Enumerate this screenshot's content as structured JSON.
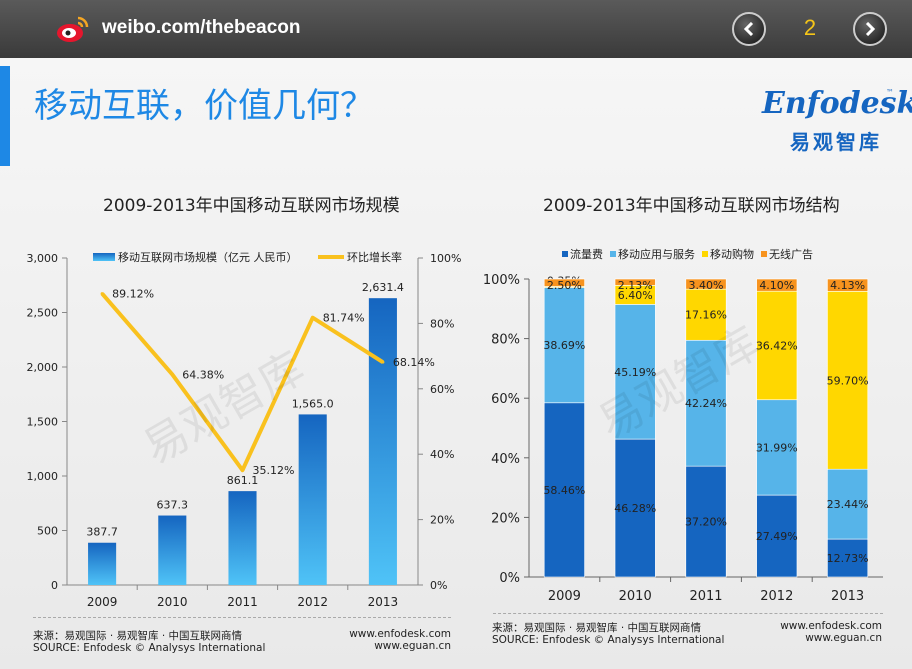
{
  "header": {
    "url": "weibo.com/thebeacon",
    "page_number": "2",
    "title": "移动互联，价值几何？",
    "logo_en": "Enfodesk",
    "logo_cn": "易观智库",
    "logo_tm": "™"
  },
  "watermark": "易观智库",
  "chart_data": [
    {
      "type": "bar",
      "title": "2009-2013年中国移动互联网市场规模",
      "categories": [
        "2009",
        "2010",
        "2011",
        "2012",
        "2013"
      ],
      "series": [
        {
          "name": "移动互联网市场规模（亿元 人民币）",
          "type": "bar",
          "axis": "left",
          "values": [
            387.7,
            637.3,
            861.1,
            1565.0,
            2631.4
          ],
          "labels": [
            "387.7",
            "637.3",
            "861.1",
            "1,565.0",
            "2,631.4"
          ],
          "color": "#1e88e5"
        },
        {
          "name": "环比增长率",
          "type": "line",
          "axis": "right",
          "values": [
            89.12,
            64.38,
            35.12,
            81.74,
            68.14
          ],
          "labels": [
            "89.12%",
            "64.38%",
            "35.12%",
            "81.74%",
            "68.14%"
          ],
          "color": "#f9c11e"
        }
      ],
      "left_axis": {
        "ylim": [
          0,
          3000
        ],
        "ticks": [
          "0",
          "500",
          "1,000",
          "1,500",
          "2,000",
          "2,500",
          "3,000"
        ]
      },
      "right_axis": {
        "ylim": [
          0,
          100
        ],
        "ticks": [
          "0%",
          "20%",
          "40%",
          "60%",
          "80%",
          "100%"
        ]
      },
      "legend": "top",
      "source_left": [
        "来源：易观国际 · 易观智库 · 中国互联网商情",
        "SOURCE: Enfodesk © Analysys International"
      ],
      "source_right": [
        "www.enfodesk.com",
        "www.eguan.cn"
      ]
    },
    {
      "type": "stacked-bar",
      "title": "2009-2013年中国移动互联网市场结构",
      "categories": [
        "2009",
        "2010",
        "2011",
        "2012",
        "2013"
      ],
      "series": [
        {
          "name": "流量费",
          "color": "#1565c0",
          "values": [
            58.46,
            46.28,
            37.2,
            27.49,
            12.73
          ],
          "labels": [
            "58.46%",
            "46.28%",
            "37.20%",
            "27.49%",
            "12.73%"
          ]
        },
        {
          "name": "移动应用与服务",
          "color": "#56b4e9",
          "values": [
            38.69,
            45.19,
            42.24,
            31.99,
            23.44
          ],
          "labels": [
            "38.69%",
            "45.19%",
            "42.24%",
            "31.99%",
            "23.44%"
          ]
        },
        {
          "name": "移动购物",
          "color": "#ffd700",
          "values": [
            0.35,
            6.4,
            17.16,
            36.42,
            59.7
          ],
          "labels": [
            "0.35%",
            "6.40%",
            "17.16%",
            "36.42%",
            "59.70%"
          ]
        },
        {
          "name": "无线广告",
          "color": "#f7931e",
          "values": [
            2.5,
            2.13,
            3.4,
            4.1,
            4.13
          ],
          "labels": [
            "2.50%",
            "2.13%",
            "3.40%",
            "4.10%",
            "4.13%"
          ]
        }
      ],
      "y_axis": {
        "ylim": [
          0,
          100
        ],
        "ticks": [
          "0%",
          "20%",
          "40%",
          "60%",
          "80%",
          "100%"
        ]
      },
      "legend": "top",
      "source_left": [
        "来源：易观国际 · 易观智库 · 中国互联网商情",
        "SOURCE: Enfodesk © Analysys International"
      ],
      "source_right": [
        "www.enfodesk.com",
        "www.eguan.cn"
      ]
    }
  ]
}
